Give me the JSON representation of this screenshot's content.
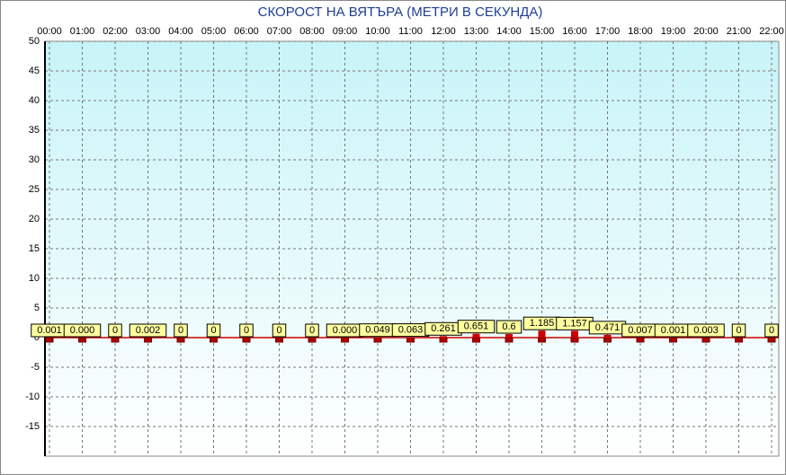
{
  "chart_data": {
    "type": "bar",
    "title": "СКОРОСТ НА ВЯТЪРА (МЕТРИ В СЕКУНДА)",
    "categories": [
      "00:00",
      "01:00",
      "02:00",
      "03:00",
      "04:00",
      "05:00",
      "06:00",
      "07:00",
      "08:00",
      "09:00",
      "10:00",
      "11:00",
      "12:00",
      "13:00",
      "14:00",
      "15:00",
      "16:00",
      "17:00",
      "18:00",
      "19:00",
      "20:00",
      "21:00",
      "22:00"
    ],
    "values": [
      0.001,
      0.0,
      0,
      0.002,
      0,
      0,
      0,
      0,
      0,
      0.0,
      0.049,
      0.063,
      0.261,
      0.651,
      0.6,
      1.185,
      1.157,
      0.471,
      0.007,
      0.001,
      0.003,
      0,
      0
    ],
    "value_labels": [
      "0.001",
      "0.000",
      "0",
      "0.002",
      "0",
      "0",
      "0",
      "0",
      "0",
      "0.000",
      "0.049",
      "0.063",
      "0.261",
      "0.651",
      "0.6",
      "1.185",
      "1.157",
      "0.471",
      "0.007",
      "0.001",
      "0.003",
      "0",
      "0"
    ],
    "color": "#cc0000",
    "ylim": [
      -20,
      50
    ],
    "yticks": [
      50,
      45,
      40,
      35,
      30,
      25,
      20,
      15,
      10,
      5,
      0,
      -5,
      -10,
      -15
    ],
    "grid": true
  }
}
